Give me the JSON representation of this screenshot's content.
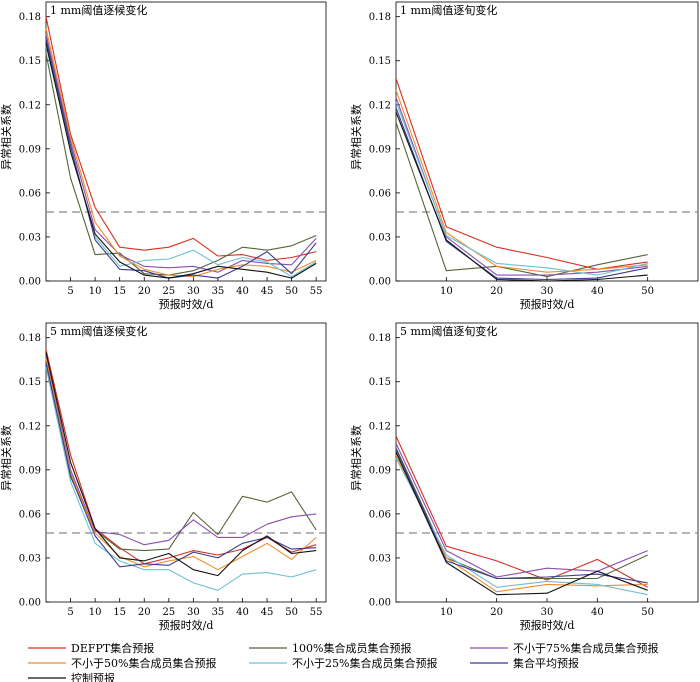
{
  "chart_data": {
    "legend": [
      {
        "key": "defpt",
        "name": "DEFPT集合预报",
        "color": "#d62f20"
      },
      {
        "key": "p100",
        "name": "100%集合成员集合预报",
        "color": "#55653a"
      },
      {
        "key": "p75",
        "name": "不小于75%集合成员集合预报",
        "color": "#8a4fb0"
      },
      {
        "key": "p50",
        "name": "不小于50%集合成员集合预报",
        "color": "#f08c2a"
      },
      {
        "key": "p25",
        "name": "不小于25%集合成员集合预报",
        "color": "#6cc0d6"
      },
      {
        "key": "mean",
        "name": "集合平均预报",
        "color": "#3b3b8f"
      },
      {
        "key": "ctrl",
        "name": "控制预报",
        "color": "#111111"
      }
    ],
    "panels": [
      {
        "type": "line",
        "title": "1 mm阈值逐候变化",
        "xlabel": "预报时效/d",
        "ylabel": "异常相关系数",
        "xlim": [
          0,
          57
        ],
        "ylim": [
          0,
          0.19
        ],
        "xticks": [
          5,
          10,
          15,
          20,
          25,
          30,
          35,
          40,
          45,
          50,
          55
        ],
        "yticks": [
          0.0,
          0.03,
          0.06,
          0.09,
          0.12,
          0.15,
          0.18
        ],
        "ytick_labels": [
          "0.00",
          "0.03",
          "0.06",
          "0.09",
          "0.12",
          "0.15",
          "0.18"
        ],
        "reference_line": 0.047,
        "x": [
          0,
          5,
          10,
          15,
          20,
          25,
          30,
          35,
          40,
          45,
          50,
          55
        ],
        "series": [
          {
            "key": "defpt",
            "values": [
              0.18,
              0.1,
              0.05,
              0.023,
              0.021,
              0.023,
              0.029,
              0.017,
              0.018,
              0.014,
              0.016,
              0.02
            ]
          },
          {
            "key": "p100",
            "values": [
              0.155,
              0.07,
              0.018,
              0.019,
              0.005,
              0.004,
              0.007,
              0.014,
              0.023,
              0.021,
              0.024,
              0.031
            ]
          },
          {
            "key": "p75",
            "values": [
              0.168,
              0.095,
              0.035,
              0.018,
              0.01,
              0.009,
              0.01,
              0.006,
              0.014,
              0.012,
              0.011,
              0.029
            ]
          },
          {
            "key": "p50",
            "values": [
              0.172,
              0.098,
              0.04,
              0.017,
              0.008,
              0.004,
              0.003,
              0.008,
              0.011,
              0.01,
              0.006,
              0.014
            ]
          },
          {
            "key": "p25",
            "values": [
              0.16,
              0.09,
              0.03,
              0.01,
              0.014,
              0.015,
              0.021,
              0.011,
              0.016,
              0.013,
              0.003,
              0.013
            ]
          },
          {
            "key": "mean",
            "values": [
              0.165,
              0.092,
              0.028,
              0.008,
              0.007,
              0.002,
              0.004,
              0.002,
              0.01,
              0.02,
              0.005,
              0.026
            ]
          },
          {
            "key": "ctrl",
            "values": [
              0.162,
              0.088,
              0.032,
              0.013,
              0.004,
              0.002,
              0.005,
              0.01,
              0.008,
              0.006,
              0.002,
              0.012
            ]
          }
        ]
      },
      {
        "type": "line",
        "title": "1 mm阈值逐旬变化",
        "xlabel": "预报时效/d",
        "ylabel": "异常相关系数",
        "xlim": [
          0,
          60
        ],
        "ylim": [
          0,
          0.19
        ],
        "xticks": [
          10,
          20,
          30,
          40,
          50
        ],
        "yticks": [
          0.0,
          0.03,
          0.06,
          0.09,
          0.12,
          0.15,
          0.18
        ],
        "ytick_labels": [
          "0.00",
          "0.03",
          "0.06",
          "0.09",
          "0.12",
          "0.15",
          "0.18"
        ],
        "reference_line": 0.047,
        "x": [
          0,
          10,
          20,
          30,
          40,
          50
        ],
        "series": [
          {
            "key": "defpt",
            "values": [
              0.138,
              0.037,
              0.023,
              0.016,
              0.008,
              0.013
            ]
          },
          {
            "key": "p100",
            "values": [
              0.108,
              0.007,
              0.01,
              0.003,
              0.011,
              0.018
            ]
          },
          {
            "key": "p75",
            "values": [
              0.125,
              0.03,
              0.004,
              0.004,
              0.006,
              0.01
            ]
          },
          {
            "key": "p50",
            "values": [
              0.13,
              0.033,
              0.01,
              0.006,
              0.008,
              0.011
            ]
          },
          {
            "key": "p25",
            "values": [
              0.122,
              0.031,
              0.012,
              0.009,
              0.004,
              0.012
            ]
          },
          {
            "key": "mean",
            "values": [
              0.118,
              0.027,
              0.002,
              0.001,
              0.002,
              0.009
            ]
          },
          {
            "key": "ctrl",
            "values": [
              0.115,
              0.028,
              0.001,
              0.0,
              0.001,
              0.004
            ]
          }
        ]
      },
      {
        "type": "line",
        "title": "5 mm阈值逐候变化",
        "xlabel": "预报时效/d",
        "ylabel": "异常相关系数",
        "xlim": [
          0,
          57
        ],
        "ylim": [
          0,
          0.19
        ],
        "xticks": [
          5,
          10,
          15,
          20,
          25,
          30,
          35,
          40,
          45,
          50,
          55
        ],
        "yticks": [
          0.0,
          0.03,
          0.06,
          0.09,
          0.12,
          0.15,
          0.18
        ],
        "ytick_labels": [
          "0.00",
          "0.03",
          "0.06",
          "0.09",
          "0.12",
          "0.15",
          "0.18"
        ],
        "reference_line": 0.047,
        "x": [
          0,
          5,
          10,
          15,
          20,
          25,
          30,
          35,
          40,
          45,
          50,
          55
        ],
        "series": [
          {
            "key": "defpt",
            "values": [
              0.172,
              0.1,
              0.05,
              0.037,
              0.026,
              0.03,
              0.035,
              0.032,
              0.036,
              0.044,
              0.034,
              0.039
            ]
          },
          {
            "key": "p100",
            "values": [
              0.165,
              0.085,
              0.049,
              0.036,
              0.035,
              0.036,
              0.061,
              0.046,
              0.072,
              0.068,
              0.075,
              0.049
            ]
          },
          {
            "key": "p75",
            "values": [
              0.168,
              0.09,
              0.048,
              0.046,
              0.039,
              0.042,
              0.056,
              0.044,
              0.044,
              0.053,
              0.058,
              0.06
            ]
          },
          {
            "key": "p50",
            "values": [
              0.166,
              0.088,
              0.047,
              0.031,
              0.024,
              0.028,
              0.031,
              0.022,
              0.031,
              0.04,
              0.029,
              0.044
            ]
          },
          {
            "key": "p25",
            "values": [
              0.16,
              0.082,
              0.04,
              0.028,
              0.022,
              0.022,
              0.013,
              0.008,
              0.019,
              0.02,
              0.017,
              0.022
            ]
          },
          {
            "key": "mean",
            "values": [
              0.163,
              0.086,
              0.045,
              0.024,
              0.026,
              0.025,
              0.034,
              0.03,
              0.04,
              0.044,
              0.036,
              0.037
            ]
          },
          {
            "key": "ctrl",
            "values": [
              0.17,
              0.095,
              0.05,
              0.03,
              0.028,
              0.033,
              0.022,
              0.018,
              0.035,
              0.045,
              0.033,
              0.035
            ]
          }
        ]
      },
      {
        "type": "line",
        "title": "5 mm阈值逐旬变化",
        "xlabel": "预报时效/d",
        "ylabel": "异常相关系数",
        "xlim": [
          0,
          60
        ],
        "ylim": [
          0,
          0.19
        ],
        "xticks": [
          10,
          20,
          30,
          40,
          50
        ],
        "yticks": [
          0.0,
          0.03,
          0.06,
          0.09,
          0.12,
          0.15,
          0.18
        ],
        "ytick_labels": [
          "0.00",
          "0.03",
          "0.06",
          "0.09",
          "0.12",
          "0.15",
          "0.18"
        ],
        "reference_line": 0.047,
        "x": [
          0,
          10,
          20,
          30,
          40,
          50
        ],
        "series": [
          {
            "key": "defpt",
            "values": [
              0.113,
              0.038,
              0.028,
              0.015,
              0.029,
              0.01
            ]
          },
          {
            "key": "p100",
            "values": [
              0.105,
              0.03,
              0.016,
              0.016,
              0.016,
              0.032
            ]
          },
          {
            "key": "p75",
            "values": [
              0.108,
              0.035,
              0.017,
              0.023,
              0.021,
              0.035
            ]
          },
          {
            "key": "p50",
            "values": [
              0.1,
              0.03,
              0.007,
              0.012,
              0.011,
              0.012
            ]
          },
          {
            "key": "p25",
            "values": [
              0.098,
              0.032,
              0.01,
              0.014,
              0.012,
              0.005
            ]
          },
          {
            "key": "mean",
            "values": [
              0.104,
              0.028,
              0.016,
              0.017,
              0.019,
              0.013
            ]
          },
          {
            "key": "ctrl",
            "values": [
              0.102,
              0.027,
              0.005,
              0.006,
              0.021,
              0.008
            ]
          }
        ]
      }
    ]
  }
}
